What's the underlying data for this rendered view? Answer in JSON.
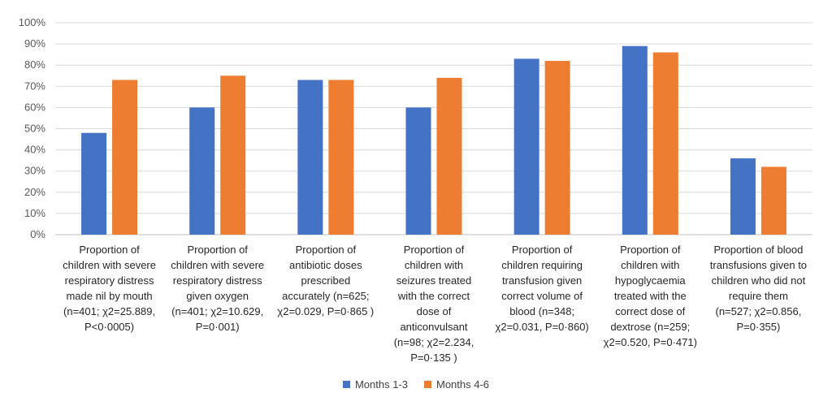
{
  "chart_data": {
    "type": "bar",
    "title": "",
    "xlabel": "",
    "ylabel": "",
    "ylim": [
      0,
      100
    ],
    "yticks": [
      "0%",
      "10%",
      "20%",
      "30%",
      "40%",
      "50%",
      "60%",
      "70%",
      "80%",
      "90%",
      "100%"
    ],
    "grid": true,
    "legend_position": "bottom",
    "categories": [
      "Proportion of\nchildren with severe\nrespiratory distress\nmade nil by mouth\n(n=401; χ2=25.889,\nP<0·0005)",
      "Proportion of\nchildren with severe\nrespiratory distress\ngiven oxygen\n(n=401; χ2=10.629,\nP=0·001)",
      "Proportion of\nantibiotic doses\nprescribed\naccurately (n=625;\nχ2=0.029, P=0·865 )",
      "Proportion of\nchildren with\nseizures treated\nwith the correct\ndose of\nanticonvulsant\n(n=98; χ2=2.234,\nP=0·135 )",
      "Proportion of\nchildren requiring\ntransfusion given\ncorrect volume of\nblood (n=348;\nχ2=0.031, P=0·860)",
      "Proportion of\nchildren with\nhypoglycaemia\ntreated with the\ncorrect dose of\ndextrose (n=259;\nχ2=0.520, P=0·471)",
      "Proportion of blood\ntransfusions given to\nchildren who did not\nrequire them\n(n=527; χ2=0.856,\nP=0·355)"
    ],
    "series": [
      {
        "name": "Months 1-3",
        "color": "#4472c4",
        "values": [
          48,
          60,
          73,
          60,
          83,
          89,
          36
        ]
      },
      {
        "name": "Months 4-6",
        "color": "#ed7d31",
        "values": [
          73,
          75,
          73,
          74,
          82,
          86,
          32
        ]
      }
    ]
  }
}
